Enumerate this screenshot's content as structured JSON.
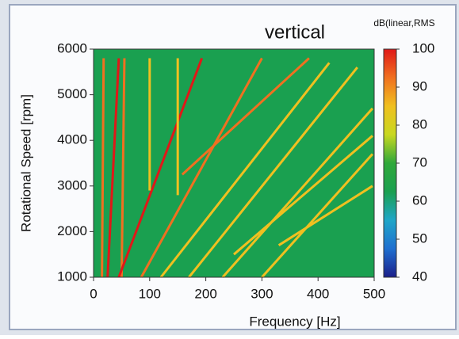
{
  "chart_data": {
    "type": "order-map",
    "title": "vertical",
    "xlabel": "Frequency [Hz]",
    "ylabel": "Rotational Speed [rpm]",
    "colorbar_label": "dB(linear,RMS",
    "xlim": [
      0,
      500
    ],
    "xticks": [
      0,
      100,
      200,
      300,
      400,
      500
    ],
    "ylim": [
      1000,
      6000
    ],
    "yticks": [
      1000,
      2000,
      3000,
      4000,
      5000,
      6000
    ],
    "clim": [
      40,
      100
    ],
    "cticks": [
      40,
      50,
      60,
      70,
      80,
      90,
      100
    ],
    "colormap": [
      "#1b1f8a",
      "#1f6fd0",
      "#1fa6c8",
      "#1aa050",
      "#2fa83a",
      "#c8d820",
      "#f0c020",
      "#f07020",
      "#e01818"
    ],
    "background_level": 66,
    "series": [
      {
        "x": [
          15,
          18
        ],
        "values": [
          1000,
          5800
        ],
        "level": 92
      },
      {
        "x": [
          25,
          45
        ],
        "values": [
          1000,
          5800
        ],
        "level": 100
      },
      {
        "x": [
          50,
          55
        ],
        "values": [
          1000,
          5800
        ],
        "level": 90
      },
      {
        "x": [
          45,
          193
        ],
        "values": [
          1000,
          5800
        ],
        "level": 100
      },
      {
        "x": [
          100,
          100
        ],
        "values": [
          2900,
          5800
        ],
        "level": 82
      },
      {
        "x": [
          150,
          150
        ],
        "values": [
          2800,
          5800
        ],
        "level": 82
      },
      {
        "x": [
          85,
          300
        ],
        "values": [
          1000,
          5800
        ],
        "level": 90
      },
      {
        "x": [
          158,
          384
        ],
        "values": [
          3250,
          5800
        ],
        "level": 92
      },
      {
        "x": [
          120,
          420
        ],
        "values": [
          1000,
          5700
        ],
        "level": 88
      },
      {
        "x": [
          170,
          470
        ],
        "values": [
          1000,
          5600
        ],
        "level": 88
      },
      {
        "x": [
          230,
          497
        ],
        "values": [
          1000,
          4700
        ],
        "level": 86
      },
      {
        "x": [
          250,
          497
        ],
        "values": [
          1500,
          4100
        ],
        "level": 86
      },
      {
        "x": [
          300,
          497
        ],
        "values": [
          1000,
          3700
        ],
        "level": 84
      },
      {
        "x": [
          330,
          497
        ],
        "values": [
          1700,
          3000
        ],
        "level": 82
      }
    ]
  }
}
